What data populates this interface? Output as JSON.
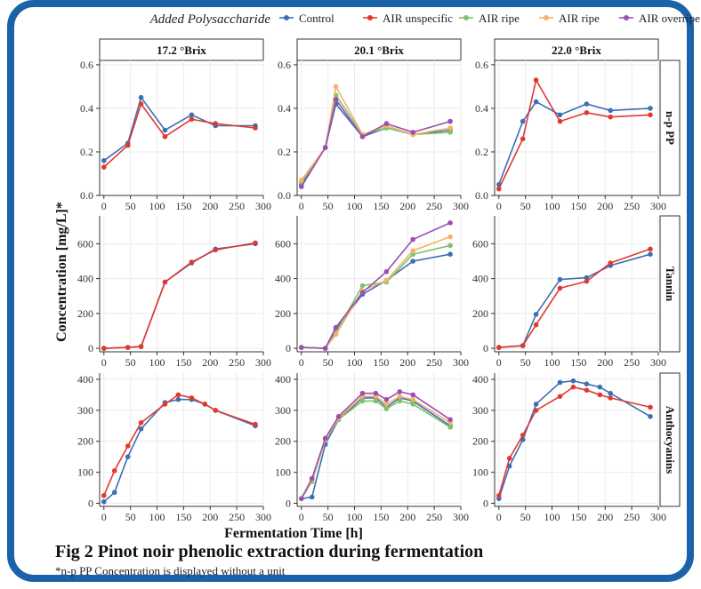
{
  "caption": {
    "title": "Fig 2 Pinot noir phenolic extraction during fermentation",
    "note": "*n-p PP Concentration is displayed without a unit"
  },
  "legend": {
    "title": "Added Polysaccharide",
    "entries": [
      {
        "name": "Control",
        "color": "#3d6fb5"
      },
      {
        "name": "AIR unspecific",
        "color": "#e03a2f"
      },
      {
        "name": "AIR ripe",
        "color": "#7dc36b"
      },
      {
        "name": "AIR ripe",
        "color": "#f5b26b"
      },
      {
        "name": "AIR overripe",
        "color": "#9b4fb0"
      }
    ]
  },
  "chart_data": {
    "type": "line",
    "xlabel": "Fermentation Time [h]",
    "ylabel": "Concentration [mg/L]*",
    "columns": [
      "17.2 °Brix",
      "20.1 °Brix",
      "22.0 °Brix"
    ],
    "rows": [
      {
        "label": "n-p PP",
        "ylim": [
          0,
          0.62
        ],
        "yticks": [
          0.0,
          0.2,
          0.4,
          0.6
        ],
        "tick_labels": [
          "0.0",
          "0.2",
          "0.4",
          "0.6"
        ]
      },
      {
        "label": "Tannin",
        "ylim": [
          -20,
          760
        ],
        "yticks": [
          0,
          200,
          400,
          600
        ],
        "tick_labels": [
          "0",
          "200",
          "400",
          "600"
        ]
      },
      {
        "label": "Anthocyanins",
        "ylim": [
          -10,
          420
        ],
        "yticks": [
          0,
          100,
          200,
          300,
          400
        ],
        "tick_labels": [
          "0",
          "100",
          "200",
          "300",
          "400"
        ]
      }
    ],
    "xlim": [
      -8,
      300
    ],
    "xticks": [
      0,
      50,
      100,
      150,
      200,
      250,
      300
    ],
    "xtick_labels": [
      "0",
      "50",
      "100",
      "150",
      "200",
      "250",
      "300"
    ],
    "panels": [
      {
        "row": 0,
        "col": 0,
        "series": [
          {
            "key": 0,
            "x": [
              0,
              45,
              70,
              115,
              165,
              210,
              285
            ],
            "y": [
              0.16,
              0.24,
              0.45,
              0.3,
              0.37,
              0.32,
              0.32
            ]
          },
          {
            "key": 1,
            "x": [
              0,
              45,
              70,
              115,
              165,
              210,
              285
            ],
            "y": [
              0.13,
              0.23,
              0.42,
              0.27,
              0.35,
              0.33,
              0.31
            ]
          }
        ]
      },
      {
        "row": 0,
        "col": 1,
        "series": [
          {
            "key": 0,
            "x": [
              0,
              45,
              65,
              115,
              160,
              210,
              280
            ],
            "y": [
              0.05,
              0.22,
              0.42,
              0.27,
              0.31,
              0.28,
              0.3
            ]
          },
          {
            "key": 2,
            "x": [
              0,
              45,
              65,
              115,
              160,
              210,
              280
            ],
            "y": [
              0.06,
              0.22,
              0.46,
              0.28,
              0.31,
              0.28,
              0.29
            ]
          },
          {
            "key": 3,
            "x": [
              0,
              45,
              65,
              115,
              160,
              210,
              280
            ],
            "y": [
              0.07,
              0.22,
              0.5,
              0.28,
              0.32,
              0.28,
              0.31
            ]
          },
          {
            "key": 4,
            "x": [
              0,
              45,
              65,
              115,
              160,
              210,
              280
            ],
            "y": [
              0.04,
              0.22,
              0.44,
              0.27,
              0.33,
              0.29,
              0.34
            ]
          }
        ]
      },
      {
        "row": 0,
        "col": 2,
        "series": [
          {
            "key": 0,
            "x": [
              0,
              45,
              70,
              115,
              165,
              210,
              285
            ],
            "y": [
              0.05,
              0.34,
              0.43,
              0.37,
              0.42,
              0.39,
              0.4
            ]
          },
          {
            "key": 1,
            "x": [
              0,
              45,
              70,
              115,
              165,
              210,
              285
            ],
            "y": [
              0.03,
              0.26,
              0.53,
              0.34,
              0.38,
              0.36,
              0.37
            ]
          }
        ]
      },
      {
        "row": 1,
        "col": 0,
        "series": [
          {
            "key": 0,
            "x": [
              0,
              45,
              70,
              115,
              165,
              210,
              285
            ],
            "y": [
              0,
              5,
              10,
              380,
              490,
              570,
              600
            ]
          },
          {
            "key": 1,
            "x": [
              0,
              45,
              70,
              115,
              165,
              210,
              285
            ],
            "y": [
              0,
              5,
              10,
              380,
              495,
              565,
              605
            ]
          }
        ]
      },
      {
        "row": 1,
        "col": 1,
        "series": [
          {
            "key": 0,
            "x": [
              0,
              45,
              65,
              115,
              160,
              210,
              280
            ],
            "y": [
              5,
              0,
              110,
              310,
              390,
              500,
              540
            ]
          },
          {
            "key": 2,
            "x": [
              0,
              45,
              65,
              115,
              160,
              210,
              280
            ],
            "y": [
              5,
              0,
              90,
              360,
              380,
              540,
              590
            ]
          },
          {
            "key": 3,
            "x": [
              0,
              45,
              65,
              115,
              160,
              210,
              280
            ],
            "y": [
              5,
              0,
              80,
              330,
              390,
              560,
              640
            ]
          },
          {
            "key": 4,
            "x": [
              0,
              45,
              65,
              115,
              160,
              210,
              280
            ],
            "y": [
              5,
              0,
              120,
              320,
              440,
              625,
              720
            ]
          }
        ]
      },
      {
        "row": 1,
        "col": 2,
        "series": [
          {
            "key": 0,
            "x": [
              0,
              45,
              70,
              115,
              165,
              210,
              285
            ],
            "y": [
              5,
              15,
              195,
              395,
              405,
              475,
              540
            ]
          },
          {
            "key": 1,
            "x": [
              0,
              45,
              70,
              115,
              165,
              210,
              285
            ],
            "y": [
              5,
              15,
              135,
              345,
              385,
              490,
              570
            ]
          }
        ]
      },
      {
        "row": 2,
        "col": 0,
        "series": [
          {
            "key": 0,
            "x": [
              0,
              20,
              45,
              70,
              115,
              140,
              165,
              190,
              210,
              285
            ],
            "y": [
              5,
              35,
              150,
              240,
              325,
              335,
              335,
              320,
              300,
              250
            ]
          },
          {
            "key": 1,
            "x": [
              0,
              20,
              45,
              70,
              115,
              140,
              165,
              190,
              210,
              285
            ],
            "y": [
              25,
              105,
              185,
              260,
              320,
              350,
              340,
              320,
              300,
              255
            ]
          }
        ]
      },
      {
        "row": 2,
        "col": 1,
        "series": [
          {
            "key": 0,
            "x": [
              0,
              20,
              45,
              70,
              115,
              140,
              160,
              185,
              210,
              280
            ],
            "y": [
              15,
              20,
              190,
              270,
              340,
              340,
              310,
              340,
              330,
              250
            ]
          },
          {
            "key": 2,
            "x": [
              0,
              20,
              45,
              70,
              115,
              140,
              160,
              185,
              210,
              280
            ],
            "y": [
              15,
              70,
              205,
              270,
              330,
              330,
              305,
              330,
              320,
              245
            ]
          },
          {
            "key": 3,
            "x": [
              0,
              20,
              45,
              70,
              115,
              140,
              160,
              185,
              210,
              280
            ],
            "y": [
              15,
              75,
              205,
              275,
              345,
              345,
              320,
              345,
              335,
              260
            ]
          },
          {
            "key": 4,
            "x": [
              0,
              20,
              45,
              70,
              115,
              140,
              160,
              185,
              210,
              280
            ],
            "y": [
              15,
              80,
              210,
              280,
              355,
              355,
              335,
              360,
              350,
              270
            ]
          }
        ]
      },
      {
        "row": 2,
        "col": 2,
        "series": [
          {
            "key": 0,
            "x": [
              0,
              20,
              45,
              70,
              115,
              140,
              165,
              190,
              210,
              285
            ],
            "y": [
              15,
              120,
              205,
              320,
              390,
              395,
              385,
              375,
              355,
              280
            ]
          },
          {
            "key": 1,
            "x": [
              0,
              20,
              45,
              70,
              115,
              140,
              165,
              190,
              210,
              285
            ],
            "y": [
              25,
              145,
              220,
              300,
              345,
              375,
              365,
              350,
              340,
              310
            ]
          }
        ]
      }
    ]
  }
}
